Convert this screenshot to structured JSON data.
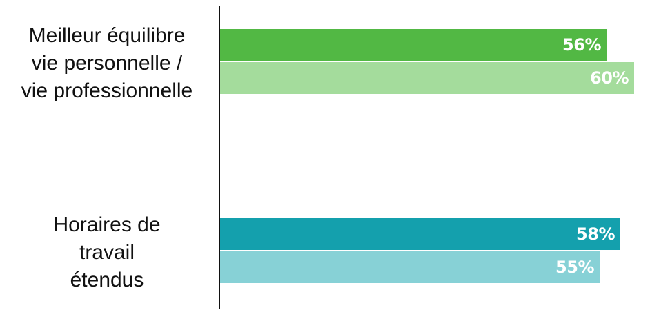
{
  "chart_data": {
    "type": "bar",
    "orientation": "horizontal",
    "categories": [
      "Meilleur équilibre vie personnelle / vie professionnelle",
      "Horaires de travail étendus"
    ],
    "category_lines": [
      [
        "Meilleur équilibre",
        "vie personnelle /",
        "vie professionnelle"
      ],
      [
        "Horaires de",
        "travail",
        "étendus"
      ]
    ],
    "series": [
      {
        "values": [
          56,
          58
        ],
        "colors": [
          "#52b844",
          "#14a0ad"
        ]
      },
      {
        "values": [
          60,
          55
        ],
        "colors": [
          "#a4dc9c",
          "#87d1d6"
        ]
      }
    ],
    "data_labels": [
      [
        "56%",
        "58%"
      ],
      [
        "60%",
        "55%"
      ]
    ],
    "xlim": [
      0,
      62
    ],
    "grid": false,
    "legend": "none",
    "title": "",
    "xlabel": "",
    "ylabel": ""
  }
}
